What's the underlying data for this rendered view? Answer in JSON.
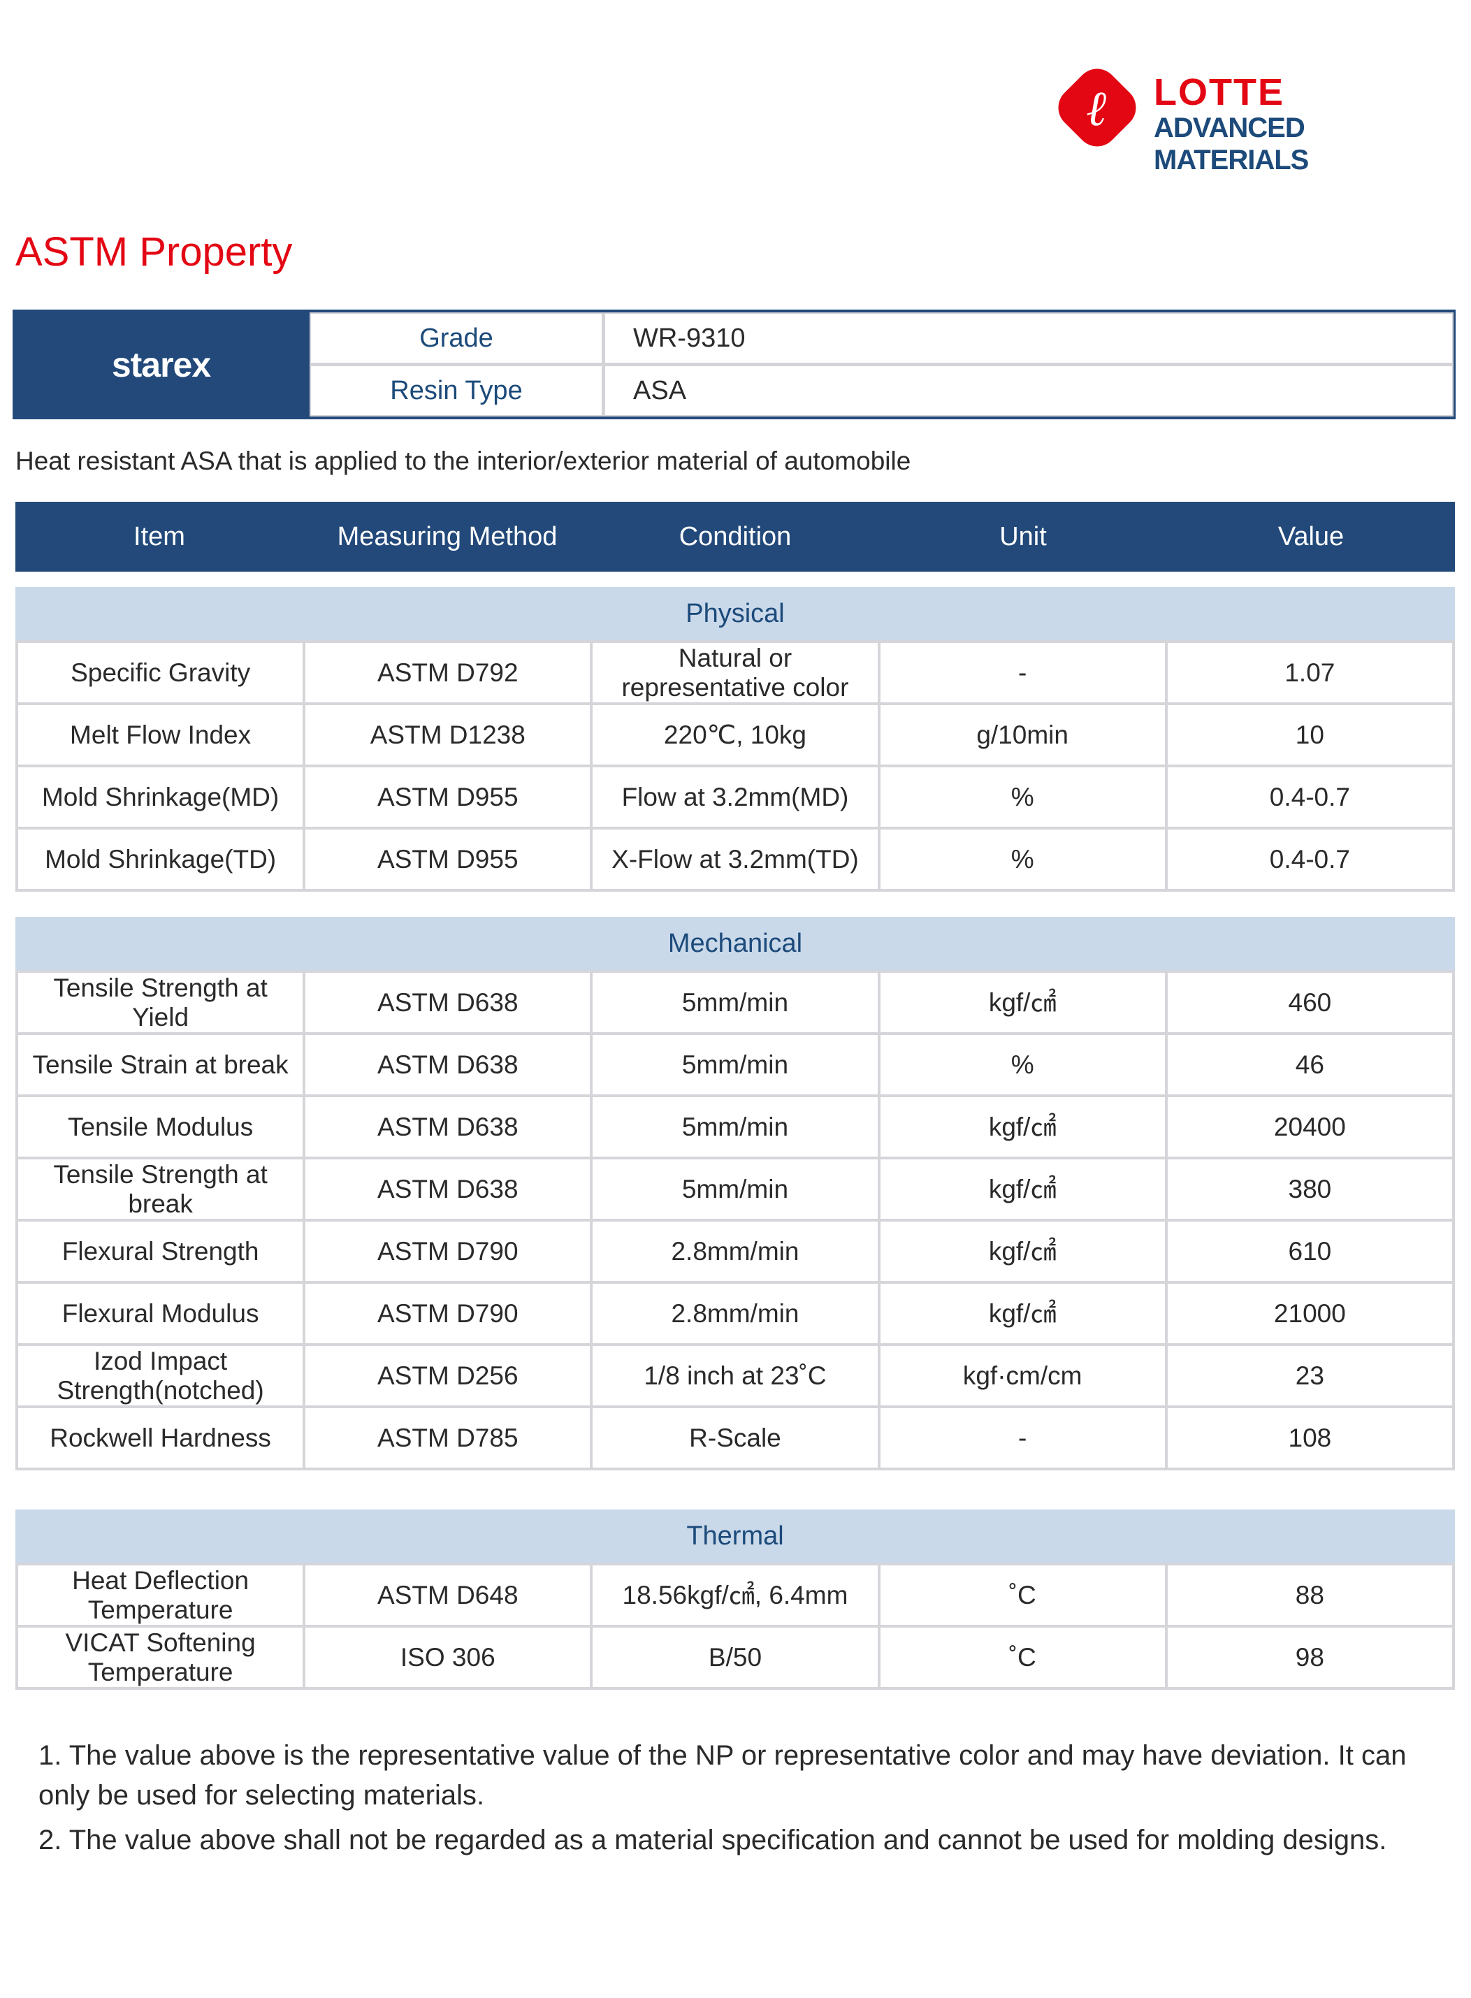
{
  "brand": {
    "logo_top": "LOTTE",
    "logo_bottom": "ADVANCED MATERIALS",
    "product_logo": "starex",
    "colors": {
      "red": "#e30613",
      "navy": "#22497a",
      "band": "#c9d9ea"
    }
  },
  "title": "ASTM Property",
  "info": [
    {
      "label": "Grade",
      "value": "WR-9310"
    },
    {
      "label": "Resin Type",
      "value": "ASA"
    }
  ],
  "description": "Heat resistant ASA that is applied to the interior/exterior material of automobile",
  "columns": [
    "Item",
    "Measuring Method",
    "Condition",
    "Unit",
    "Value"
  ],
  "sections": [
    {
      "name": "Physical",
      "rows": [
        [
          "Specific Gravity",
          "ASTM D792",
          "Natural or representative color",
          "-",
          "1.07"
        ],
        [
          "Melt Flow Index",
          "ASTM D1238",
          "220℃, 10kg",
          "g/10min",
          "10"
        ],
        [
          "Mold Shrinkage(MD)",
          "ASTM D955",
          "Flow at 3.2mm(MD)",
          "%",
          "0.4-0.7"
        ],
        [
          "Mold Shrinkage(TD)",
          "ASTM D955",
          "X-Flow at 3.2mm(TD)",
          "%",
          "0.4-0.7"
        ]
      ]
    },
    {
      "name": "Mechanical",
      "rows": [
        [
          "Tensile Strength at Yield",
          "ASTM D638",
          "5mm/min",
          "kgf/㎠",
          "460"
        ],
        [
          "Tensile Strain at break",
          "ASTM D638",
          "5mm/min",
          "%",
          "46"
        ],
        [
          "Tensile Modulus",
          "ASTM D638",
          "5mm/min",
          "kgf/㎠",
          "20400"
        ],
        [
          "Tensile Strength at break",
          "ASTM D638",
          "5mm/min",
          "kgf/㎠",
          "380"
        ],
        [
          "Flexural Strength",
          "ASTM D790",
          "2.8mm/min",
          "kgf/㎠",
          "610"
        ],
        [
          "Flexural Modulus",
          "ASTM D790",
          "2.8mm/min",
          "kgf/㎠",
          "21000"
        ],
        [
          "Izod Impact Strength(notched)",
          "ASTM D256",
          "1/8 inch at 23˚C",
          "kgf·cm/cm",
          "23"
        ],
        [
          "Rockwell Hardness",
          "ASTM D785",
          "R-Scale",
          "-",
          "108"
        ]
      ]
    },
    {
      "name": "Thermal",
      "rows": [
        [
          "Heat Deflection Temperature",
          "ASTM D648",
          "18.56kgf/㎠, 6.4mm",
          "˚C",
          "88"
        ],
        [
          "VICAT Softening Temperature",
          "ISO 306",
          "B/50",
          "˚C",
          "98"
        ]
      ]
    }
  ],
  "notes": [
    "1. The value above is the representative value of the NP or representative color and may have deviation. It can only be used for selecting materials.",
    "2. The value above shall not be regarded as a material specification and cannot be used for molding designs."
  ]
}
